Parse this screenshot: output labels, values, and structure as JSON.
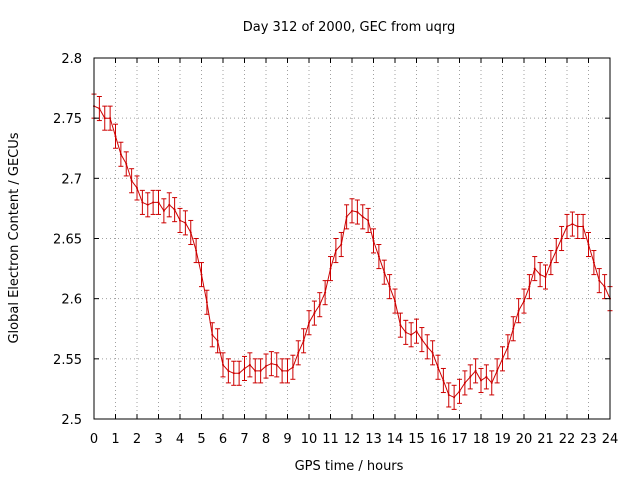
{
  "chart_data": {
    "type": "line",
    "title": "Day 312 of 2000, GEC from uqrg",
    "xlabel": "GPS time / hours",
    "ylabel": "Global Electron Content / GECUs",
    "xlim": [
      0,
      24
    ],
    "ylim": [
      2.5,
      2.8
    ],
    "grid": true,
    "xticks": [
      0,
      1,
      2,
      3,
      4,
      5,
      6,
      7,
      8,
      9,
      10,
      11,
      12,
      13,
      14,
      15,
      16,
      17,
      18,
      19,
      20,
      21,
      22,
      23,
      24
    ],
    "xtick_labels": [
      "0",
      "1",
      "2",
      "3",
      "4",
      "5",
      "6",
      "7",
      "8",
      "9",
      "10",
      "11",
      "12",
      "13",
      "14",
      "15",
      "16",
      "17",
      "18",
      "19",
      "20",
      "21",
      "22",
      "23",
      "24"
    ],
    "yticks": [
      2.5,
      2.55,
      2.6,
      2.65,
      2.7,
      2.75,
      2.8
    ],
    "ytick_labels": [
      "2.5",
      "2.55",
      "2.6",
      "2.65",
      "2.7",
      "2.75",
      "2.8"
    ],
    "series": [
      {
        "name": "GEC",
        "color": "#cc0000",
        "error": 0.01,
        "x": [
          0,
          0.25,
          0.5,
          0.75,
          1,
          1.25,
          1.5,
          1.75,
          2,
          2.25,
          2.5,
          2.75,
          3,
          3.25,
          3.5,
          3.75,
          4,
          4.25,
          4.5,
          4.75,
          5,
          5.25,
          5.5,
          5.75,
          6,
          6.25,
          6.5,
          6.75,
          7,
          7.25,
          7.5,
          7.75,
          8,
          8.25,
          8.5,
          8.75,
          9,
          9.25,
          9.5,
          9.75,
          10,
          10.25,
          10.5,
          10.75,
          11,
          11.25,
          11.5,
          11.75,
          12,
          12.25,
          12.5,
          12.75,
          13,
          13.25,
          13.5,
          13.75,
          14,
          14.25,
          14.5,
          14.75,
          15,
          15.25,
          15.5,
          15.75,
          16,
          16.25,
          16.5,
          16.75,
          17,
          17.25,
          17.5,
          17.75,
          18,
          18.25,
          18.5,
          18.75,
          19,
          19.25,
          19.5,
          19.75,
          20,
          20.25,
          20.5,
          20.75,
          21,
          21.25,
          21.5,
          21.75,
          22,
          22.25,
          22.5,
          22.75,
          23,
          23.25,
          23.5,
          23.75,
          24
        ],
        "y": [
          2.76,
          2.758,
          2.75,
          2.75,
          2.735,
          2.72,
          2.712,
          2.698,
          2.692,
          2.68,
          2.678,
          2.68,
          2.68,
          2.673,
          2.678,
          2.674,
          2.665,
          2.663,
          2.655,
          2.64,
          2.62,
          2.597,
          2.57,
          2.565,
          2.545,
          2.54,
          2.538,
          2.538,
          2.542,
          2.545,
          2.54,
          2.54,
          2.544,
          2.546,
          2.545,
          2.54,
          2.54,
          2.543,
          2.555,
          2.565,
          2.58,
          2.588,
          2.595,
          2.605,
          2.625,
          2.64,
          2.645,
          2.668,
          2.673,
          2.672,
          2.668,
          2.665,
          2.648,
          2.635,
          2.622,
          2.61,
          2.598,
          2.578,
          2.572,
          2.57,
          2.573,
          2.566,
          2.56,
          2.555,
          2.543,
          2.532,
          2.52,
          2.518,
          2.523,
          2.53,
          2.535,
          2.54,
          2.532,
          2.535,
          2.53,
          2.54,
          2.55,
          2.56,
          2.575,
          2.59,
          2.598,
          2.61,
          2.625,
          2.62,
          2.618,
          2.63,
          2.64,
          2.65,
          2.66,
          2.662,
          2.66,
          2.66,
          2.645,
          2.63,
          2.615,
          2.61,
          2.6
        ]
      }
    ]
  }
}
